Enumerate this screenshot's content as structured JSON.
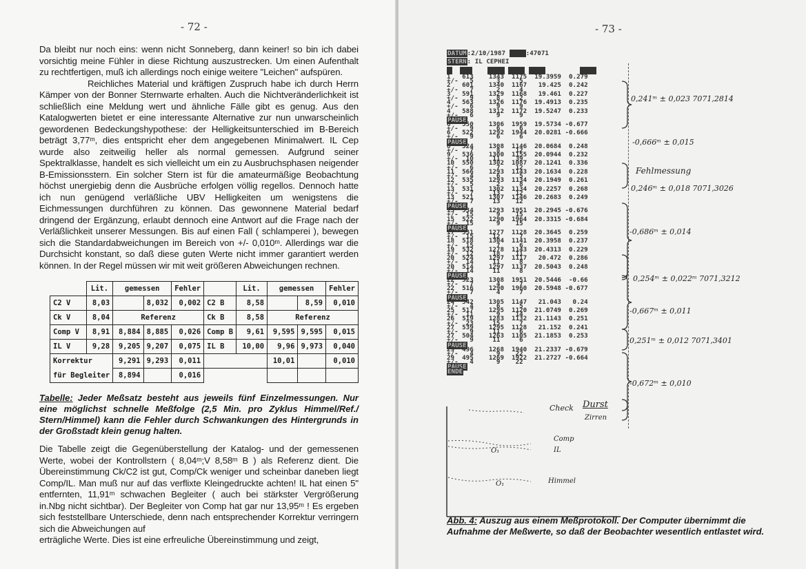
{
  "left_page": {
    "page_number": "- 72 -",
    "paragraph1": "Da bleibt nur noch eins: wenn nicht Sonneberg, dann keiner! so bin ich dabei vorsichtig meine Fühler in diese Richtung auszustrecken. Um einen Aufenthalt zu rechtfertigen, muß ich allerdings noch einige weitere \"Leichen\" aufspüren.",
    "paragraph2": "Reichliches Material und kräftigen Zuspruch habe ich durch Herrn Kämper von der Bonner Sternwarte erhalten. Auch die Nichtveränderlichkeit ist schließlich eine Meldung wert und ähnliche Fälle gibt es genug. Aus den Katalogwerten bietet er eine interessante Alternative zur nun unwarscheinlich gewordenen Bedeckungshypothese: der Helligkeitsunterschied im B-Bereich beträgt 3,77ᵐ, dies entspricht eher dem angegebenen Minimalwert. IL Cep wurde also zeitweilig heller als normal gemessen. Aufgrund seiner Spektralklasse, handelt es sich vielleicht um ein zu Ausbruchsphasen neigender B-Emissionsstern. Ein solcher Stern ist für die amateurmäßige Beobachtung höchst unergiebig denn die Ausbrüche erfolgen völlig regellos. Dennoch hatte ich nun genügend verläßliche UBV Helligkeiten um wenigstens die Eichmessungen durchführen zu können. Das gewonnene Material bedarf dringend der Ergänzung, erlaubt dennoch eine Antwort auf die Frage nach der Verläßlichkeit unserer Messungen. Bis auf einen Fall ( schlamperei ), bewegen sich die Standardabweichungen im Bereich von +/- 0,010ᵐ. Allerdings war die Durchsicht konstant, so daß diese guten Werte nicht immer garantiert werden können. In der Regel müssen wir mit weit größeren Abweichungen rechnen.",
    "table": {
      "headers": {
        "lit": "Lit.",
        "measured": "gemessen",
        "error": "Fehler"
      },
      "rows": [
        {
          "lv": "C2 V",
          "v_lit": "8,03",
          "v_m1": "",
          "v_m2": "8,032",
          "v_err": "0,002",
          "lb": "C2 B",
          "b_lit": "8,58",
          "b_m1": "",
          "b_m2": "8,59",
          "b_err": "0,010"
        },
        {
          "lv": "Ck V",
          "v_lit": "8,04",
          "v_ref": "Referenz",
          "lb": "Ck B",
          "b_lit": "8,58",
          "b_ref": "Referenz"
        },
        {
          "lv": "Comp V",
          "v_lit": "8,91",
          "v_m1": "8,884",
          "v_m2": "8,885",
          "v_err": "0,026",
          "lb": "Comp B",
          "b_lit": "9,61",
          "b_m1": "9,595",
          "b_m2": "9,595",
          "b_err": "0,015"
        },
        {
          "lv": "IL V",
          "v_lit": "9,28",
          "v_m1": "9,205",
          "v_m2": "9,207",
          "v_err": "0,075",
          "lb": "IL B",
          "b_lit": "10,00",
          "b_m1": "9,96",
          "b_m2": "9,973",
          "b_err": "0,040"
        }
      ],
      "correction_label_1": "Korrektur",
      "correction_label_2": "für Begleiter",
      "corr1": {
        "v_m1": "9,291",
        "v_m2": "9,293",
        "v_err": "0,011",
        "b_m1": "10,01",
        "b_err": "0,010"
      },
      "corr2": {
        "v_m1": "8,894",
        "v_err": "0,016"
      }
    },
    "caption_label": "Tabelle:",
    "caption_text": "Jeder Meßsatz besteht aus jeweils fünf Einzelmessungen. Nur eine möglichst schnelle Meßfolge (2,5 Min. pro Zyklus Himmel/Ref./ Stern/Himmel) kann die Fehler durch Schwankungen des Hintergrunds in der Großstadt klein genug halten.",
    "paragraph3": "Die Tabelle zeigt die Gegenüberstellung der Katalog- und der gemessenen Werte, wobei der Kontrollstern ( 8,04ᵐ;V 8,58ᵐ B ) als Referenz dient. Die Übereinstimmung Ck/C2 ist gut, Comp/Ck weniger und scheinbar daneben liegt Comp/IL. Man muß nur auf das verflixte Kleingedruckte achten! IL hat einen 5\" entfernten, 11,91ᵐ schwachen Begleiter ( auch bei stärkster Vergrößerung in.Nbg nicht sichtbar). Der Begleiter von Comp hat gar nur 13,95ᵐ ! Es ergeben sich feststellbare Unterschiede, denn nach entsprechender Korrektur verringern sich die Abweichungen auf",
    "paragraph4": "erträgliche Werte. Dies ist eine erfreuliche Übereinstimmung und zeigt,"
  },
  "right_page": {
    "page_number": "- 73 -",
    "printout": {
      "date_label": "DATUM",
      "date": ":2/10/1987",
      "jd_value": ":47071",
      "star_label": "STERN",
      "star": ": IL CEPHEI",
      "pause_label": "PAUSE",
      "end_label": "ENDE",
      "pm": "+/-",
      "records": [
        [
          "1",
          "613",
          "1343",
          "1175",
          "19.3959",
          "0.279",
          "5",
          "3",
          "5"
        ],
        [
          "2",
          "601",
          "1340",
          "1167",
          "19.425",
          "0.242",
          "7",
          "2",
          "4"
        ],
        [
          "3",
          "591",
          "1329",
          "1168",
          "19.461",
          "0.227",
          "9",
          "8",
          "2"
        ],
        [
          "4",
          "563",
          "1326",
          "1176",
          "19.4913",
          "0.235",
          "6",
          "9",
          "9"
        ],
        [
          "4",
          "588",
          "1312",
          "1172",
          "19.5247",
          "0.233",
          "6",
          "9",
          "9"
        ],
        "PAUSE",
        [
          "6",
          "550",
          "1306",
          "1959",
          "19.5734",
          "-0.677",
          "9",
          "6",
          "6"
        ],
        [
          "6",
          "522",
          "1292",
          "1944",
          "20.0281",
          "-0.666",
          "9",
          "6",
          "6"
        ],
        "PAUSE",
        [
          "8",
          "524",
          "1308",
          "1146",
          "20.0684",
          "0.248",
          "7",
          "8",
          "12"
        ],
        [
          "9",
          "536",
          "1300",
          "1155",
          "20.0944",
          "0.232",
          "10",
          "11",
          "39"
        ],
        [
          "10",
          "550",
          "1302",
          "1087",
          "20.1241",
          "0.336",
          "6",
          "7",
          "12"
        ],
        [
          "11",
          "566",
          "1293",
          "1143",
          "20.1634",
          "0.228",
          "4",
          "6",
          "5"
        ],
        [
          "12",
          "535",
          "1293",
          "1134",
          "20.1949",
          "0.261",
          "5",
          "2",
          "8"
        ],
        [
          "13",
          "531",
          "1302",
          "1134",
          "20.2257",
          "0.268",
          "7",
          "13",
          "12"
        ],
        [
          "13",
          "521",
          "1307",
          "1146",
          "20.2683",
          "0.249",
          "7",
          "13",
          "12"
        ],
        "PAUSE",
        [
          "15",
          "534",
          "1293",
          "1951",
          "20.2945",
          "-0.676",
          "15",
          "9",
          "15"
        ],
        [
          "15",
          "522",
          "1290",
          "1964",
          "20.3315",
          "-0.684",
          "15",
          "9",
          "15"
        ],
        "PAUSE",
        [
          "17",
          "531",
          "1277",
          "1128",
          "20.3645",
          "0.259",
          "15",
          "12",
          "7"
        ],
        [
          "18",
          "518",
          "1304",
          "1141",
          "20.3958",
          "0.237",
          "15",
          "7",
          "6"
        ],
        [
          "19",
          "532",
          "1278",
          "1143",
          "20.4313",
          "0.229",
          "12",
          "18",
          "11"
        ],
        [
          "20",
          "524",
          "1297",
          "1117",
          "20.472",
          "0.286",
          "14",
          "11",
          "8"
        ],
        [
          "20",
          "514",
          "1297",
          "1137",
          "20.5043",
          "0.248",
          "14",
          "11",
          "8"
        ],
        "PAUSE",
        [
          "22",
          "523",
          "1308",
          "1951",
          "20.5446",
          "-0.66",
          "7",
          "4",
          "7"
        ],
        [
          "22",
          "516",
          "1290",
          "1960",
          "20.5948",
          "-0.677",
          "7",
          "4",
          "7"
        ],
        "PAUSE",
        [
          "24",
          "542",
          "1305",
          "1147",
          "21.043",
          "0.24",
          "4",
          "6",
          "5"
        ],
        [
          "25",
          "517",
          "1295",
          "1120",
          "21.0749",
          "0.269",
          "11",
          "9",
          "14"
        ],
        [
          "26",
          "519",
          "1283",
          "1132",
          "21.1143",
          "0.251",
          "23",
          "15",
          "7"
        ],
        [
          "27",
          "539",
          "1295",
          "1128",
          "21.152",
          "0.241",
          "9",
          "11",
          "6"
        ],
        [
          "27",
          "504",
          "1263",
          "1105",
          "21.1853",
          "0.253",
          "9",
          "11",
          "6"
        ],
        "PAUSE",
        [
          "29",
          "496",
          "1268",
          "1940",
          "21.2337",
          "-0.679",
          "4",
          "9",
          "22"
        ],
        [
          "29",
          "495",
          "1269",
          "1922",
          "21.2727",
          "-0.664",
          "4",
          "9",
          "22"
        ],
        "PAUSE",
        "ENDE"
      ]
    },
    "annotations": [
      {
        "text": "0,241ᵐ ± 0,023   7071,2814"
      },
      {
        "text": "-0,666ᵐ ± 0,015"
      },
      {
        "text": "Fehlmessung"
      },
      {
        "text": "0,246ᵐ ± 0,018   7071,3026"
      },
      {
        "text": "-0,686ᵐ ± 0,014"
      },
      {
        "text": "0,254ᵐ ± 0,022ᵐ  7071,3212"
      },
      {
        "text": "-0,667ᵐ ± 0,011"
      },
      {
        "text": "0,251ᵐ ± 0,012   7071,3401"
      },
      {
        "text": "-0,672ᵐ ± 0,010"
      }
    ],
    "sketch": {
      "check": "Check",
      "durst": "Durst",
      "zirren": "Zirren",
      "comp": "Comp",
      "il": "IL",
      "himmel": "Himmel",
      "o1": "O₁"
    },
    "caption_label": "Abb. 4:",
    "caption_text": "Auszug aus einem Meßprotokoll. Der Computer übernimmt die Aufnahme der Meßwerte, so daß der Beobachter wesentlich entlastet wird."
  }
}
